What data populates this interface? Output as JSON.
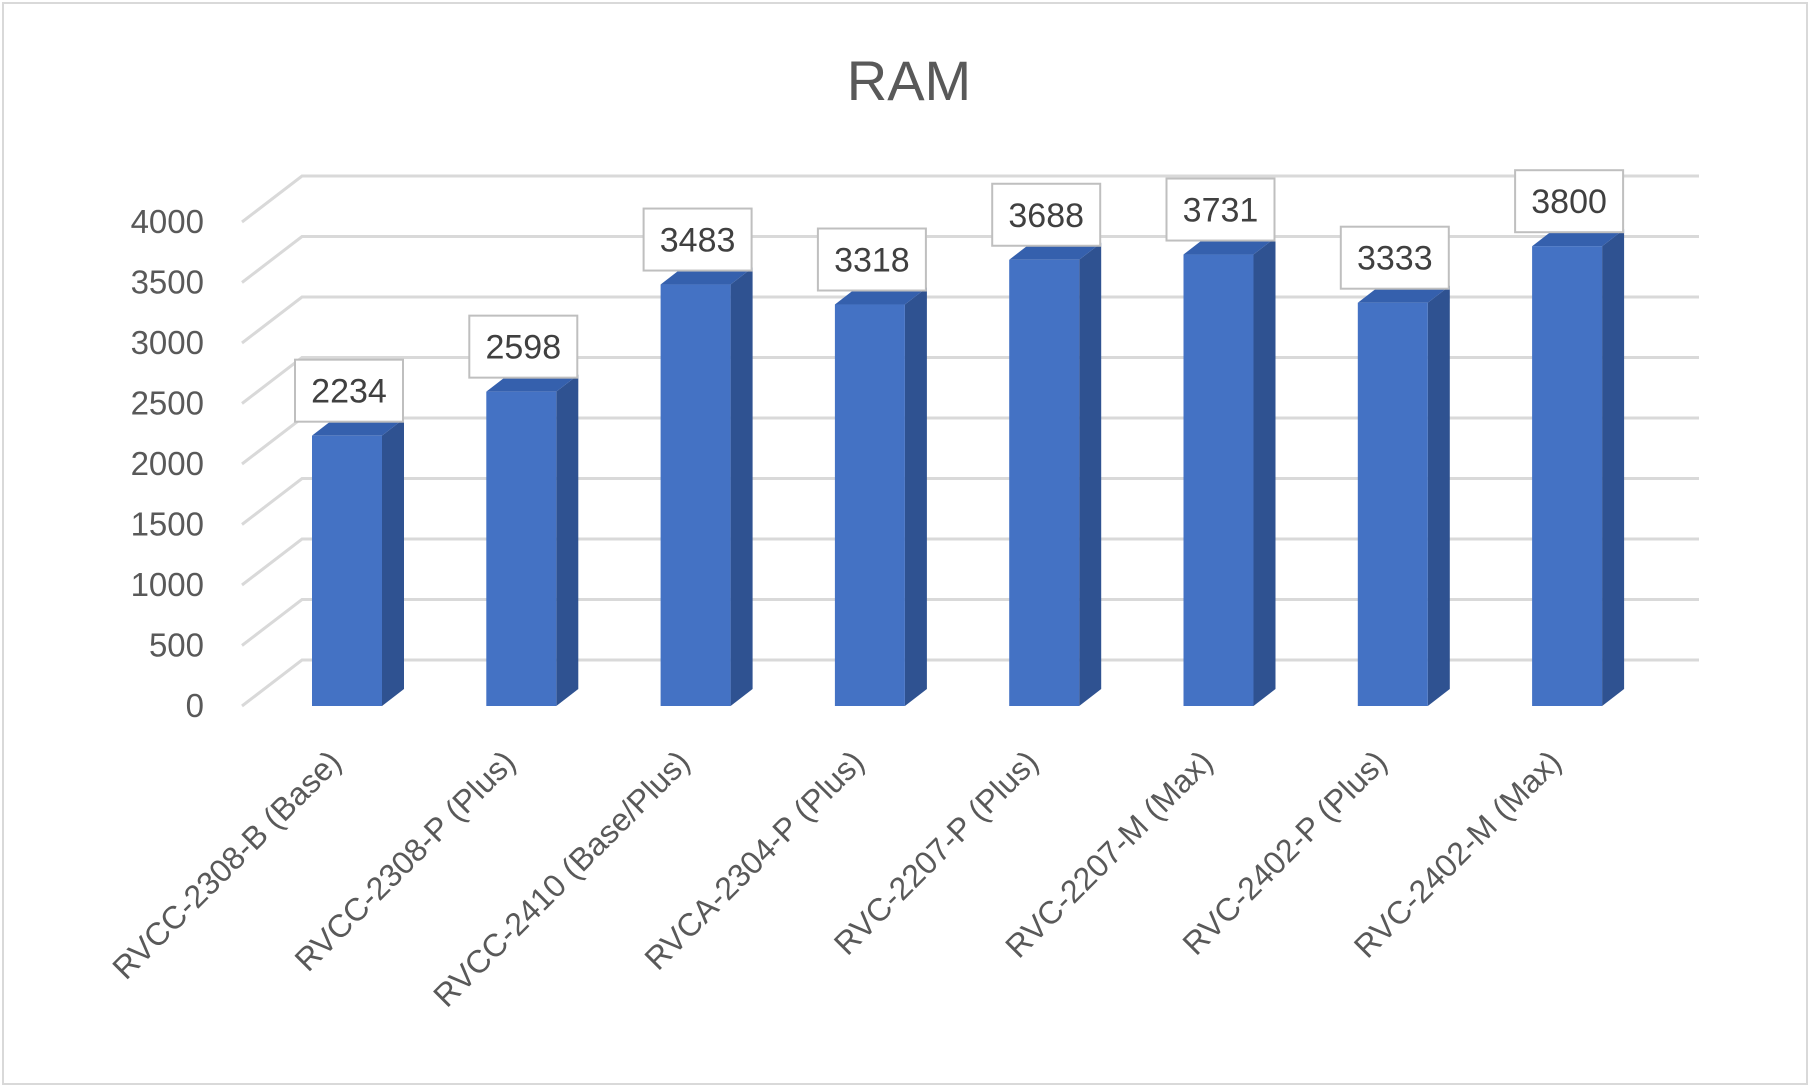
{
  "chart_data": {
    "type": "bar",
    "style": "3d-column",
    "title": "RAM",
    "xlabel": "",
    "ylabel": "",
    "categories": [
      "RVCC-2308-B (Base)",
      "RVCC-2308-P (Plus)",
      "RVCC-2410 (Base/Plus)",
      "RVCA-2304-P (Plus)",
      "RVC-2207-P (Plus)",
      "RVC-2207-M (Max)",
      "RVC-2402-P (Plus)",
      "RVC-2402-M (Max)"
    ],
    "values": [
      2234,
      2598,
      3483,
      3318,
      3688,
      3731,
      3333,
      3800
    ],
    "data_labels": [
      "2234",
      "2598",
      "3483",
      "3318",
      "3688",
      "3731",
      "3333",
      "3800"
    ],
    "ylim": [
      0,
      4000
    ],
    "yticks": [
      "0",
      "500",
      "1000",
      "1500",
      "2000",
      "2500",
      "3000",
      "3500",
      "4000"
    ],
    "grid": true,
    "legend": "none",
    "colors": {
      "bar_front": "#4472c4",
      "bar_side": "#2f5291",
      "bar_top": "#3560ad",
      "gridline": "#d9d9d9",
      "text": "#595959"
    }
  }
}
